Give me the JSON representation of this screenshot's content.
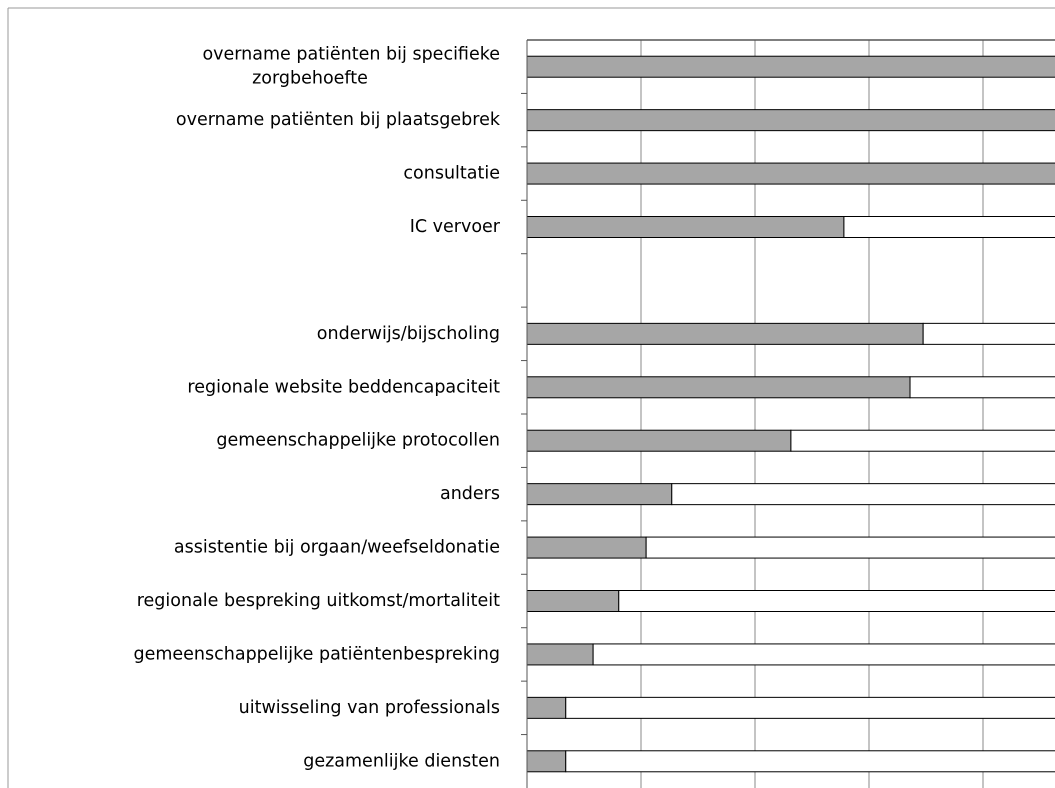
{
  "chart_data": {
    "type": "bar",
    "orientation": "horizontal",
    "stacked": true,
    "categories": [
      "overname patiënten bij specifieke\nzorgbehoefte",
      "overname patiënten bij plaatsgebrek",
      "consultatie",
      "IC vervoer",
      null,
      "onderwijs/bijscholing",
      "regionale website beddencapaciteit",
      "gemeenschappelijke protocollen",
      "anders",
      "assistentie bij orgaan/weefseldonatie",
      "regionale bespreking uitkomst/mortaliteit",
      "gemeenschappelijke patiëntenbespreking",
      "uitwisseling van professionals",
      "gezamenlijke diensten"
    ],
    "series": [
      {
        "color": "#a6a6a6",
        "values": [
          100,
          100,
          100,
          55.6,
          null,
          69.5,
          67.2,
          46.3,
          25.4,
          20.9,
          16.1,
          11.6,
          6.8,
          6.8
        ]
      },
      {
        "color": "#ffffff",
        "values": [
          0,
          0,
          0,
          44.4,
          null,
          30.5,
          32.8,
          53.7,
          74.6,
          79.1,
          83.9,
          88.4,
          93.2,
          93.2
        ]
      }
    ],
    "xlim": [
      0,
      100
    ],
    "xticks": [
      0,
      20,
      40,
      60,
      80,
      100
    ],
    "grid": true
  }
}
